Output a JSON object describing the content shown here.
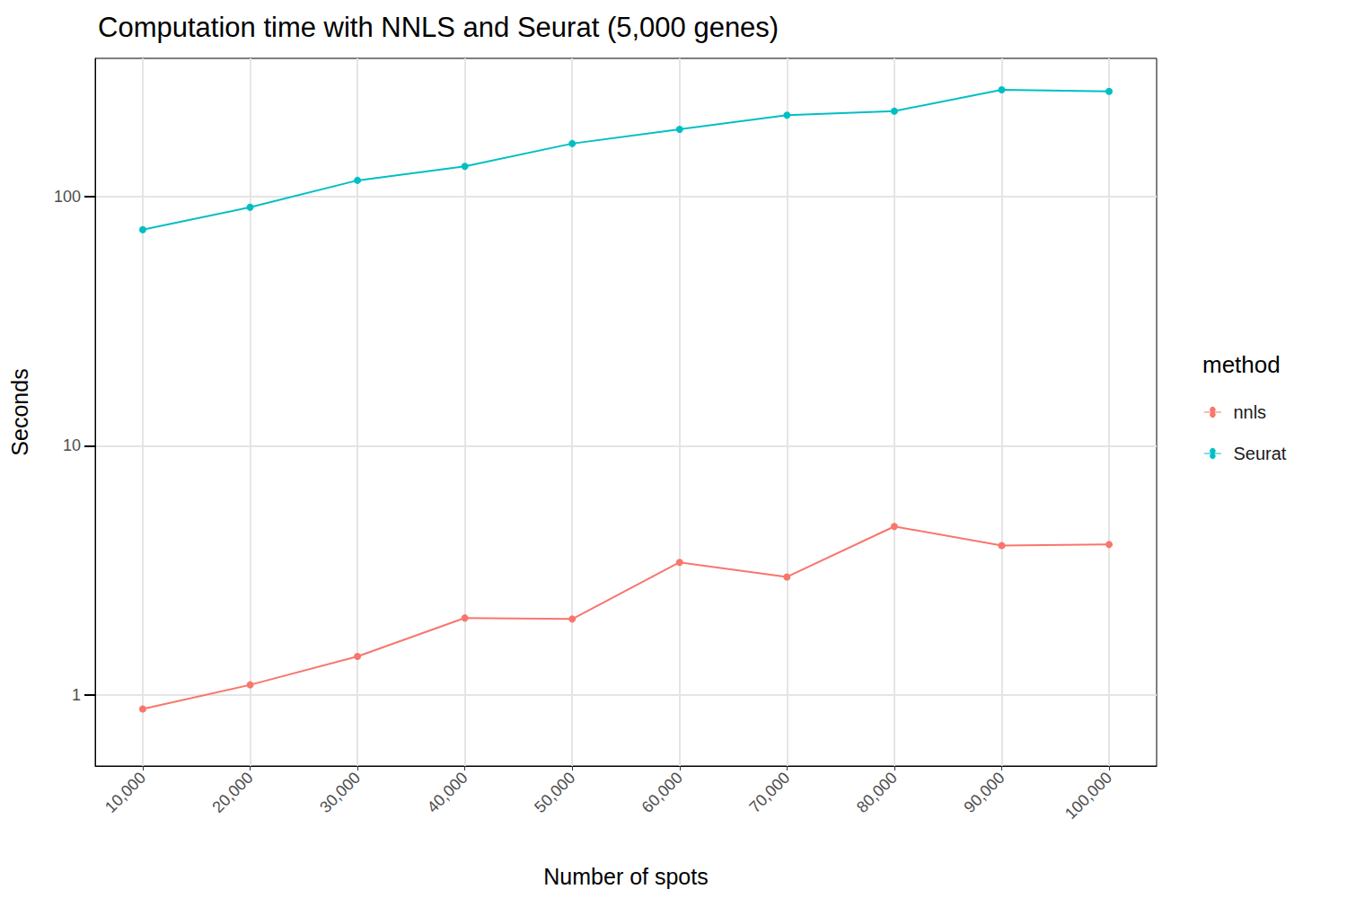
{
  "chart_data": {
    "type": "line",
    "title": "Computation time with NNLS and Seurat (5,000 genes)",
    "x_label": "Number of spots",
    "y_label": "Seconds",
    "legend_title": "method",
    "legend": "right",
    "log": "y",
    "grid": true,
    "marker": "circle",
    "x": [
      10000,
      20000,
      30000,
      40000,
      50000,
      60000,
      70000,
      80000,
      90000,
      100000
    ],
    "series": [
      {
        "name": "nnls",
        "color": "#F8766D",
        "values": [
          0.88,
          1.1,
          1.43,
          2.04,
          2.02,
          3.41,
          2.98,
          4.75,
          3.98,
          4.02
        ]
      },
      {
        "name": "Seurat",
        "color": "#00BFC4",
        "values": [
          73.6,
          90.5,
          116,
          132,
          163,
          186,
          212,
          220,
          268,
          264
        ]
      }
    ],
    "xlim": [
      5570,
      104430
    ],
    "xticks": [
      {
        "value": 10000,
        "label": "10,000"
      },
      {
        "value": 20000,
        "label": "20,000"
      },
      {
        "value": 30000,
        "label": "30,000"
      },
      {
        "value": 40000,
        "label": "40,000"
      },
      {
        "value": 50000,
        "label": "50,000"
      },
      {
        "value": 60000,
        "label": "60,000"
      },
      {
        "value": 70000,
        "label": "70,000"
      },
      {
        "value": 80000,
        "label": "80,000"
      },
      {
        "value": 90000,
        "label": "90,000"
      },
      {
        "value": 100000,
        "label": "100,000"
      }
    ],
    "ylim": [
      0.52,
      358
    ],
    "yticks": [
      1,
      10,
      100
    ]
  }
}
